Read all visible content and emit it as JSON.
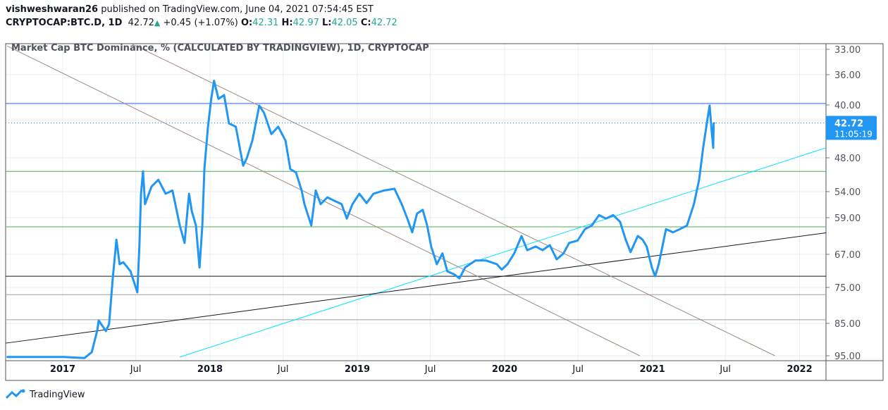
{
  "header": {
    "author": "vishweshwaran26",
    "published": "published on TradingView.com, June 04, 2021 07:54:45 EST"
  },
  "symbol": {
    "name": "CRYPTOCAP:BTC.D, 1D",
    "last": "42.72",
    "change": "+0.45 (+1.07%)",
    "o_label": "O:",
    "o": "42.31",
    "h_label": "H:",
    "h": "42.97",
    "l_label": "L:",
    "l": "42.05",
    "c_label": "C:",
    "c": "42.72",
    "arrow_icon": "triangle-up-icon"
  },
  "price_tag": {
    "value": "42.72",
    "countdown": "11:05:19",
    "color": "#2196f3"
  },
  "logo": {
    "text": "TradingView"
  },
  "colors": {
    "series": "#2196f3",
    "brown": "#a1887f",
    "cyan": "#00e5ff",
    "black": "#131722",
    "green": "#4caf50",
    "blue": "#2962ff",
    "gray": "#9e9e9e"
  },
  "chart_data": {
    "type": "line",
    "title": "Market Cap BTC Dominance, % (CALCULATED BY TRADINGVIEW), 1D, CRYPTOCAP",
    "y_inverted": true,
    "y_ticks": [
      33,
      36,
      40,
      48,
      54,
      59,
      67,
      75,
      85,
      95
    ],
    "y_tick_labels": [
      "33.00",
      "36.00",
      "40.00",
      "48.00",
      "54.00",
      "59.00",
      "67.00",
      "75.00",
      "85.00",
      "95.00"
    ],
    "x_ticks": [
      [
        "2017-01-01",
        "2017"
      ],
      [
        "2017-07-01",
        "Jul"
      ],
      [
        "2018-01-01",
        "2018"
      ],
      [
        "2018-07-01",
        "Jul"
      ],
      [
        "2019-01-01",
        "2019"
      ],
      [
        "2019-07-01",
        "Jul"
      ],
      [
        "2020-01-01",
        "2020"
      ],
      [
        "2020-07-01",
        "Jul"
      ],
      [
        "2021-01-01",
        "2021"
      ],
      [
        "2021-07-01",
        "Jul"
      ],
      [
        "2022-01-01",
        "2022"
      ]
    ],
    "grid": true,
    "series": [
      {
        "values": [
          [
            "2016-08-16",
            95.4
          ],
          [
            "2017-01-03",
            95.4
          ],
          [
            "2017-02-24",
            95.7
          ],
          [
            "2017-03-14",
            93.9
          ],
          [
            "2017-03-28",
            87
          ],
          [
            "2017-03-31",
            84.2
          ],
          [
            "2017-04-18",
            87.4
          ],
          [
            "2017-04-26",
            85.2
          ],
          [
            "2017-05-05",
            72.8
          ],
          [
            "2017-05-14",
            63.8
          ],
          [
            "2017-05-22",
            69.4
          ],
          [
            "2017-05-31",
            68.9
          ],
          [
            "2017-06-18",
            71.1
          ],
          [
            "2017-07-05",
            76.4
          ],
          [
            "2017-07-10",
            65.1
          ],
          [
            "2017-07-14",
            54.4
          ],
          [
            "2017-07-19",
            50.4
          ],
          [
            "2017-07-24",
            56.4
          ],
          [
            "2017-08-09",
            53.1
          ],
          [
            "2017-08-26",
            51.9
          ],
          [
            "2017-09-13",
            54.4
          ],
          [
            "2017-09-30",
            53.8
          ],
          [
            "2017-10-18",
            60.7
          ],
          [
            "2017-10-30",
            64.5
          ],
          [
            "2017-11-10",
            54.4
          ],
          [
            "2017-11-17",
            57.8
          ],
          [
            "2017-11-27",
            60.7
          ],
          [
            "2017-12-06",
            70.2
          ],
          [
            "2017-12-13",
            60.7
          ],
          [
            "2017-12-18",
            50
          ],
          [
            "2017-12-27",
            43.3
          ],
          [
            "2018-01-04",
            39.2
          ],
          [
            "2018-01-11",
            36.8
          ],
          [
            "2018-01-22",
            39.2
          ],
          [
            "2018-02-05",
            38.7
          ],
          [
            "2018-02-17",
            42.8
          ],
          [
            "2018-03-06",
            43.3
          ],
          [
            "2018-03-24",
            49.4
          ],
          [
            "2018-04-02",
            48.1
          ],
          [
            "2018-04-16",
            45.4
          ],
          [
            "2018-05-03",
            40.1
          ],
          [
            "2018-05-15",
            41.2
          ],
          [
            "2018-06-02",
            44.4
          ],
          [
            "2018-06-19",
            43.3
          ],
          [
            "2018-07-07",
            45.4
          ],
          [
            "2018-07-19",
            50
          ],
          [
            "2018-08-02",
            50.6
          ],
          [
            "2018-08-16",
            53.8
          ],
          [
            "2018-08-23",
            56.4
          ],
          [
            "2018-09-09",
            60.7
          ],
          [
            "2018-09-20",
            53.8
          ],
          [
            "2018-10-02",
            56.4
          ],
          [
            "2018-10-19",
            55.1
          ],
          [
            "2018-11-06",
            55.8
          ],
          [
            "2018-11-23",
            56.4
          ],
          [
            "2018-12-06",
            59.2
          ],
          [
            "2018-12-20",
            56.4
          ],
          [
            "2019-01-06",
            54.4
          ],
          [
            "2019-01-24",
            56.2
          ],
          [
            "2019-02-10",
            54.4
          ],
          [
            "2019-03-08",
            53.8
          ],
          [
            "2019-04-03",
            53.5
          ],
          [
            "2019-04-21",
            56.4
          ],
          [
            "2019-05-05",
            59.2
          ],
          [
            "2019-05-17",
            62.2
          ],
          [
            "2019-05-29",
            58.2
          ],
          [
            "2019-06-12",
            57.5
          ],
          [
            "2019-06-23",
            60.7
          ],
          [
            "2019-07-03",
            65.3
          ],
          [
            "2019-07-17",
            69.4
          ],
          [
            "2019-07-31",
            66.8
          ],
          [
            "2019-08-12",
            71.1
          ],
          [
            "2019-08-30",
            71.9
          ],
          [
            "2019-09-11",
            72.8
          ],
          [
            "2019-09-25",
            70.2
          ],
          [
            "2019-10-21",
            68.5
          ],
          [
            "2019-11-16",
            68.5
          ],
          [
            "2019-12-13",
            69.4
          ],
          [
            "2019-12-25",
            70.7
          ],
          [
            "2020-01-08",
            69.4
          ],
          [
            "2020-01-25",
            66.8
          ],
          [
            "2020-02-12",
            63
          ],
          [
            "2020-02-26",
            66.1
          ],
          [
            "2020-03-18",
            65.3
          ],
          [
            "2020-04-04",
            66.1
          ],
          [
            "2020-04-22",
            65
          ],
          [
            "2020-05-09",
            68.2
          ],
          [
            "2020-05-26",
            66.8
          ],
          [
            "2020-06-09",
            64.5
          ],
          [
            "2020-06-30",
            64
          ],
          [
            "2020-07-18",
            61.5
          ],
          [
            "2020-08-04",
            60.7
          ],
          [
            "2020-08-22",
            58.5
          ],
          [
            "2020-09-08",
            59.2
          ],
          [
            "2020-09-26",
            58.5
          ],
          [
            "2020-10-13",
            59.9
          ],
          [
            "2020-10-27",
            63.8
          ],
          [
            "2020-11-08",
            66.5
          ],
          [
            "2020-11-26",
            63
          ],
          [
            "2020-12-08",
            63.8
          ],
          [
            "2020-12-18",
            65.3
          ],
          [
            "2020-12-31",
            70.2
          ],
          [
            "2021-01-08",
            72.3
          ],
          [
            "2021-01-17",
            69.4
          ],
          [
            "2021-02-04",
            61.5
          ],
          [
            "2021-02-21",
            62.2
          ],
          [
            "2021-03-10",
            61.5
          ],
          [
            "2021-03-28",
            60.7
          ],
          [
            "2021-04-14",
            56.4
          ],
          [
            "2021-04-27",
            51.9
          ],
          [
            "2021-05-07",
            46.5
          ],
          [
            "2021-05-16",
            42.8
          ],
          [
            "2021-05-23",
            40.1
          ],
          [
            "2021-05-28",
            43.8
          ],
          [
            "2021-06-01",
            46.5
          ],
          [
            "2021-06-02",
            42.8
          ],
          [
            "2021-06-04",
            42.72
          ]
        ]
      }
    ],
    "trendlines": [
      {
        "color": "brown",
        "from": [
          "2016-08-16",
          32.6
        ],
        "to": [
          "2020-12-01",
          95
        ]
      },
      {
        "color": "brown",
        "from": [
          "2017-06-18",
          32.3
        ],
        "to": [
          "2021-11-01",
          95
        ]
      },
      {
        "color": "cyan",
        "from": [
          "2017-10-18",
          95.4
        ],
        "to": [
          "2022-07-21",
          43.8
        ]
      },
      {
        "color": "black",
        "from": [
          "2016-08-13",
          91.1
        ],
        "to": [
          "2022-07-21",
          60.7
        ]
      }
    ],
    "horizontal_lines": [
      {
        "color": "blue",
        "value": 39.8
      },
      {
        "color": "green",
        "value": 50.4
      },
      {
        "color": "green",
        "value": 61
      },
      {
        "color": "black",
        "value": 72.3
      },
      {
        "color": "gray",
        "value": 77
      },
      {
        "color": "gray",
        "value": 84
      }
    ],
    "last_value": 42.72
  }
}
